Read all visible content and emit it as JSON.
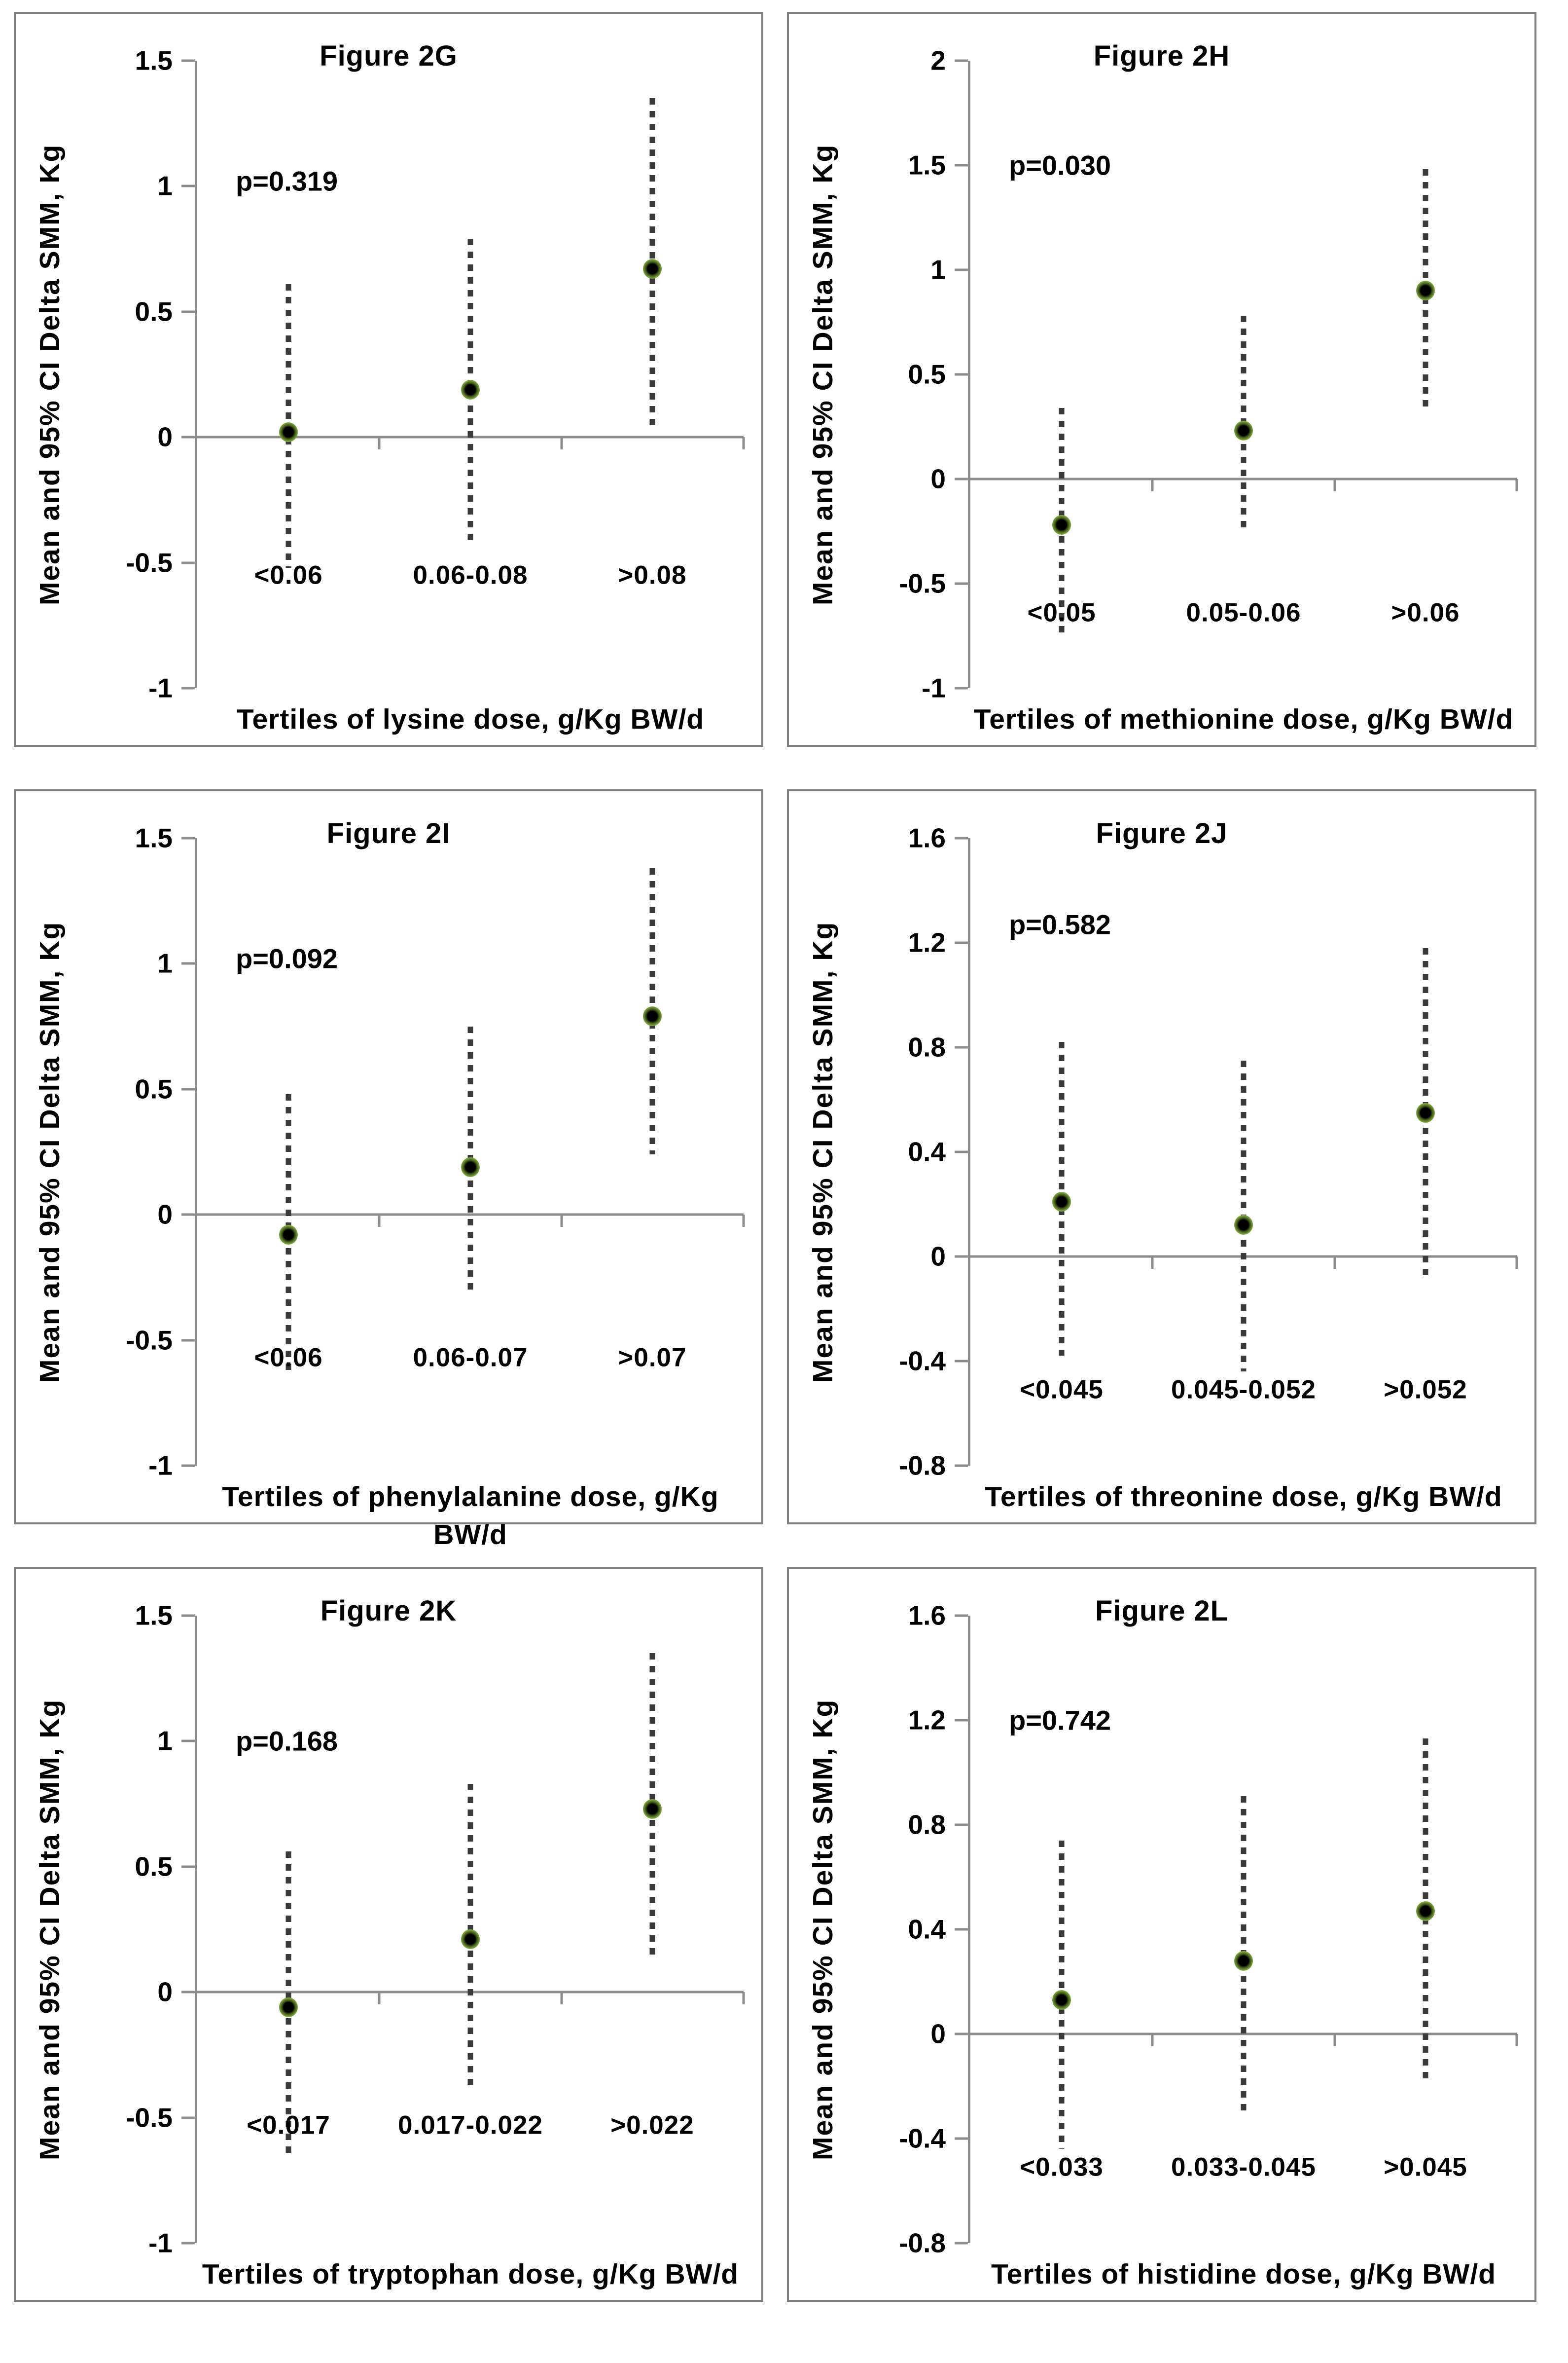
{
  "shared": {
    "y_axis_title": "Mean and 95% CI Delta SMM, Kg",
    "colors": {
      "panel_border": "#7f7f7f",
      "axis_line": "#8c8c8c",
      "ci_dash": "#3a3a3a",
      "marker_core": "#000000",
      "marker_halo": "#82ad44",
      "text": "#000000",
      "background": "#ffffff"
    }
  },
  "chart_data": [
    {
      "type": "scatter",
      "id": "2G",
      "title": "Figure 2G",
      "p_label": "p=0.319",
      "ylabel": "Mean and 95% CI Delta SMM, Kg",
      "xlabel_lines": [
        "Tertiles of lysine dose, g/Kg BW/d"
      ],
      "ytick_labels": [
        "1.5",
        "1",
        "0.5",
        "0",
        "-0.5",
        "-1"
      ],
      "ylim": [
        -1,
        1.5
      ],
      "grid": false,
      "categories": [
        "<0.06",
        "0.06-0.08",
        ">0.08"
      ],
      "points": [
        {
          "mean": 0.02,
          "ci_low": -0.52,
          "ci_high": 0.61
        },
        {
          "mean": 0.19,
          "ci_low": -0.42,
          "ci_high": 0.79
        },
        {
          "mean": 0.67,
          "ci_low": 0.04,
          "ci_high": 1.35
        }
      ],
      "layout": {
        "p_y": 1.02,
        "category_label_y": -0.55
      }
    },
    {
      "type": "scatter",
      "id": "2H",
      "title": "Figure 2H",
      "p_label": "p=0.030",
      "ylabel": "Mean and 95% CI Delta SMM, Kg",
      "xlabel_lines": [
        "Tertiles of methionine dose, g/Kg BW/d"
      ],
      "ytick_labels": [
        "2",
        "1.5",
        "1",
        "0.5",
        "0",
        "-0.5",
        "-1"
      ],
      "ylim": [
        -1,
        2
      ],
      "grid": false,
      "categories": [
        "<0.05",
        "0.05-0.06",
        ">0.06"
      ],
      "points": [
        {
          "mean": -0.22,
          "ci_low": -0.75,
          "ci_high": 0.34
        },
        {
          "mean": 0.23,
          "ci_low": -0.26,
          "ci_high": 0.78
        },
        {
          "mean": 0.9,
          "ci_low": 0.32,
          "ci_high": 1.48
        }
      ],
      "layout": {
        "p_y": 1.5,
        "category_label_y": -0.64
      }
    },
    {
      "type": "scatter",
      "id": "2I",
      "title": "Figure 2I",
      "p_label": "p=0.092",
      "ylabel": "Mean and 95% CI Delta SMM, Kg",
      "xlabel_lines": [
        "Tertiles of phenylalanine dose, g/Kg",
        "BW/d"
      ],
      "ytick_labels": [
        "1.5",
        "1",
        "0.5",
        "0",
        "-0.5",
        "-1"
      ],
      "ylim": [
        -1,
        1.5
      ],
      "grid": false,
      "categories": [
        "<0.06",
        "0.06-0.07",
        ">0.07"
      ],
      "points": [
        {
          "mean": -0.08,
          "ci_low": -0.63,
          "ci_high": 0.48
        },
        {
          "mean": 0.19,
          "ci_low": -0.31,
          "ci_high": 0.75
        },
        {
          "mean": 0.79,
          "ci_low": 0.24,
          "ci_high": 1.38
        }
      ],
      "layout": {
        "p_y": 1.02,
        "category_label_y": -0.57
      }
    },
    {
      "type": "scatter",
      "id": "2J",
      "title": "Figure 2J",
      "p_label": "p=0.582",
      "ylabel": "Mean and 95% CI Delta SMM, Kg",
      "xlabel_lines": [
        "Tertiles of threonine dose, g/Kg BW/d"
      ],
      "ytick_labels": [
        "1.6",
        "1.2",
        "0.8",
        "0.4",
        "0",
        "-0.4",
        "-0.8"
      ],
      "ylim": [
        -0.8,
        1.6
      ],
      "grid": false,
      "categories": [
        "<0.045",
        "0.045-0.052",
        ">0.052"
      ],
      "points": [
        {
          "mean": 0.21,
          "ci_low": -0.38,
          "ci_high": 0.82
        },
        {
          "mean": 0.12,
          "ci_low": -0.44,
          "ci_high": 0.75
        },
        {
          "mean": 0.55,
          "ci_low": -0.08,
          "ci_high": 1.18
        }
      ],
      "layout": {
        "p_y": 1.27,
        "category_label_y": -0.51
      }
    },
    {
      "type": "scatter",
      "id": "2K",
      "title": "Figure 2K",
      "p_label": "p=0.168",
      "ylabel": "Mean and 95% CI Delta SMM, Kg",
      "xlabel_lines": [
        "Tertiles of tryptophan dose, g/Kg BW/d"
      ],
      "ytick_labels": [
        "1.5",
        "1",
        "0.5",
        "0",
        "-0.5",
        "-1"
      ],
      "ylim": [
        -1,
        1.5
      ],
      "grid": false,
      "categories": [
        "<0.017",
        "0.017-0.022",
        ">0.022"
      ],
      "points": [
        {
          "mean": -0.06,
          "ci_low": -0.64,
          "ci_high": 0.56
        },
        {
          "mean": 0.21,
          "ci_low": -0.37,
          "ci_high": 0.83
        },
        {
          "mean": 0.73,
          "ci_low": 0.14,
          "ci_high": 1.35
        }
      ],
      "layout": {
        "p_y": 1.0,
        "category_label_y": -0.53
      }
    },
    {
      "type": "scatter",
      "id": "2L",
      "title": "Figure 2L",
      "p_label": "p=0.742",
      "ylabel": "Mean and 95% CI Delta SMM, Kg",
      "xlabel_lines": [
        "Tertiles of histidine dose, g/Kg BW/d"
      ],
      "ytick_labels": [
        "1.6",
        "1.2",
        "0.8",
        "0.4",
        "0",
        "-0.4",
        "-0.8"
      ],
      "ylim": [
        -0.8,
        1.6
      ],
      "grid": false,
      "categories": [
        "<0.033",
        "0.033-0.045",
        ">0.045"
      ],
      "points": [
        {
          "mean": 0.13,
          "ci_low": -0.44,
          "ci_high": 0.74
        },
        {
          "mean": 0.28,
          "ci_low": -0.3,
          "ci_high": 0.91
        },
        {
          "mean": 0.47,
          "ci_low": -0.17,
          "ci_high": 1.13
        }
      ],
      "layout": {
        "p_y": 1.2,
        "category_label_y": -0.51
      }
    }
  ]
}
